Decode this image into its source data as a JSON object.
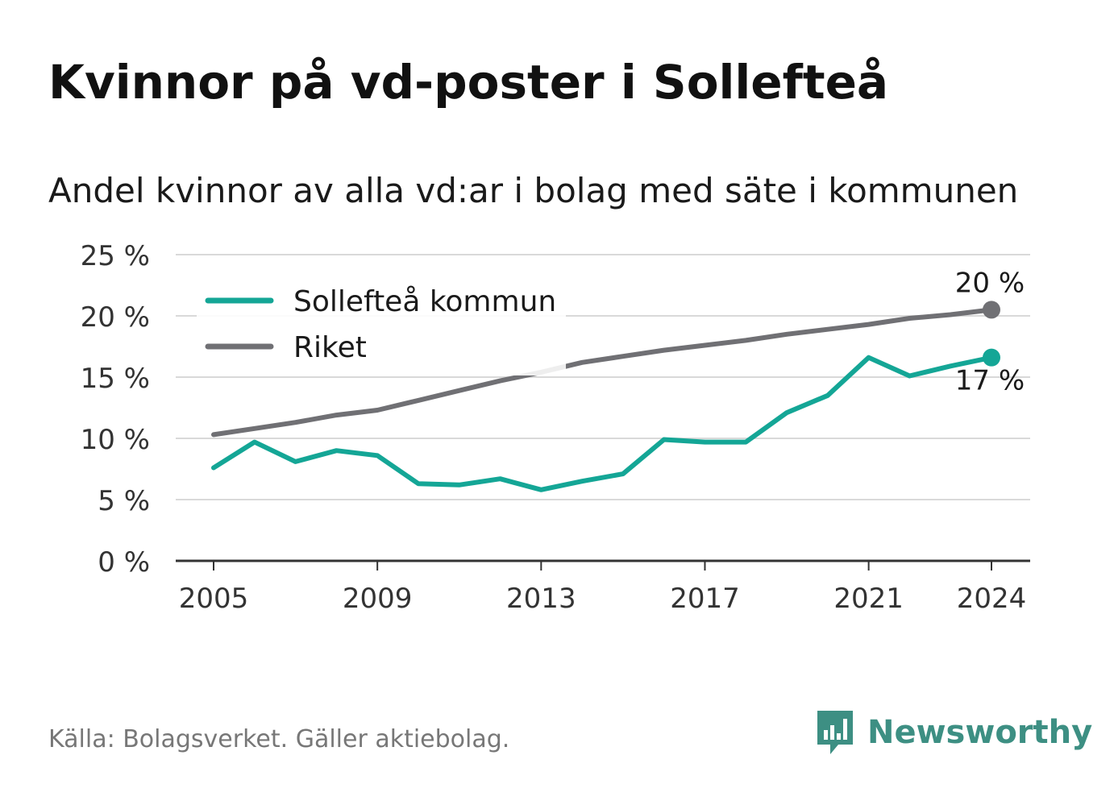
{
  "title": "Kvinnor på vd-poster i Sollefteå",
  "subtitle": "Andel kvinnor av alla vd:ar i bolag med säte i kommunen",
  "source": "Källa: Bolagsverket. Gäller aktiebolag.",
  "brand": "Newsworthy",
  "brand_icon": "newsworthy-bar-chart-bubble-icon",
  "colors": {
    "sollefteå": "#14a696",
    "riket": "#707074",
    "grid": "#d9d9d9",
    "axis": "#333333",
    "brand": "#3d8f83"
  },
  "chart_data": {
    "type": "line",
    "title": "Kvinnor på vd-poster i Sollefteå",
    "subtitle": "Andel kvinnor av alla vd:ar i bolag med säte i kommunen",
    "x": [
      2005,
      2006,
      2007,
      2008,
      2009,
      2010,
      2011,
      2012,
      2013,
      2014,
      2015,
      2016,
      2017,
      2018,
      2019,
      2020,
      2021,
      2022,
      2023,
      2024
    ],
    "xticks": [
      2005,
      2009,
      2013,
      2017,
      2021,
      2024
    ],
    "xtick_labels": [
      "2005",
      "2009",
      "2013",
      "2017",
      "2021",
      "2024"
    ],
    "ylim": [
      0,
      25
    ],
    "yticks": [
      0,
      5,
      10,
      15,
      20,
      25
    ],
    "ytick_labels": [
      "0 %",
      "5 %",
      "10 %",
      "15 %",
      "20 %",
      "25 %"
    ],
    "grid": true,
    "legend_placement": "top-left",
    "series": [
      {
        "name": "Sollefteå kommun",
        "color": "#14a696",
        "values": [
          7.6,
          9.7,
          8.1,
          9.0,
          8.6,
          6.3,
          6.2,
          6.7,
          5.8,
          6.5,
          7.1,
          9.9,
          9.7,
          9.7,
          12.1,
          13.5,
          16.6,
          15.1,
          15.9,
          16.6
        ],
        "end_label": "17 %"
      },
      {
        "name": "Riket",
        "color": "#707074",
        "values": [
          10.3,
          10.8,
          11.3,
          11.9,
          12.3,
          13.1,
          13.9,
          14.7,
          15.4,
          16.2,
          16.7,
          17.2,
          17.6,
          18.0,
          18.5,
          18.9,
          19.3,
          19.8,
          20.1,
          20.5
        ],
        "end_label": "20 %"
      }
    ]
  }
}
